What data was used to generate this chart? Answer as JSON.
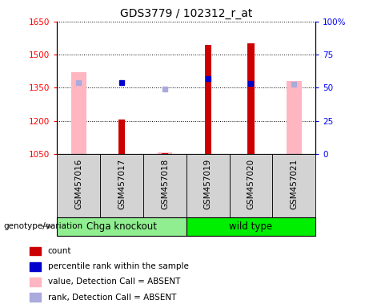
{
  "title": "GDS3779 / 102312_r_at",
  "samples": [
    "GSM457016",
    "GSM457017",
    "GSM457018",
    "GSM457019",
    "GSM457020",
    "GSM457021"
  ],
  "ylim_left": [
    1050,
    1650
  ],
  "ylim_right": [
    0,
    100
  ],
  "yticks_left": [
    1050,
    1200,
    1350,
    1500,
    1650
  ],
  "yticks_right": [
    0,
    25,
    50,
    75,
    100
  ],
  "red_bar_color": "#CC0000",
  "pink_bar_color": "#FFB6C1",
  "blue_marker_color": "#0000CC",
  "lightblue_marker_color": "#AAAADD",
  "red_bars": [
    null,
    1205,
    1055,
    1545,
    1550,
    null
  ],
  "pink_bars": [
    1420,
    null,
    1058,
    null,
    null,
    1380
  ],
  "blue_markers": [
    null,
    1375,
    null,
    1390,
    1370,
    null
  ],
  "lightblue_markers": [
    1375,
    null,
    1345,
    null,
    null,
    1365
  ],
  "genotype_label": "genotype/variation",
  "group1_label": "Chga knockout",
  "group2_label": "wild type",
  "group1_color": "#90EE90",
  "group2_color": "#00EE00",
  "legend_items": [
    {
      "label": "count",
      "color": "#CC0000"
    },
    {
      "label": "percentile rank within the sample",
      "color": "#0000CC"
    },
    {
      "label": "value, Detection Call = ABSENT",
      "color": "#FFB6C1"
    },
    {
      "label": "rank, Detection Call = ABSENT",
      "color": "#AAAADD"
    }
  ]
}
